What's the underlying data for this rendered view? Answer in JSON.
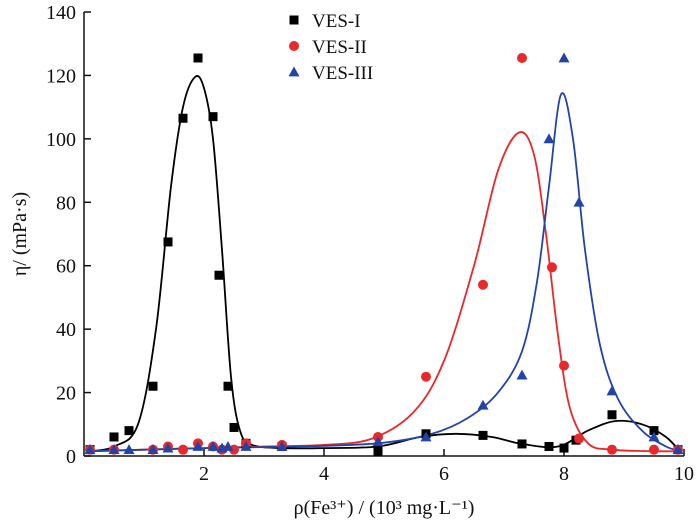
{
  "chart_data": {
    "type": "scatter",
    "title": "",
    "xlabel": "ρ(Fe³⁺) / (10³ mg·L⁻¹)",
    "ylabel": "η/ (mPa·s)",
    "xlim": [
      0,
      10
    ],
    "ylim": [
      0,
      140
    ],
    "x_ticks": [
      2,
      4,
      6,
      8,
      10
    ],
    "y_ticks": [
      0,
      20,
      40,
      60,
      80,
      100,
      120,
      140
    ],
    "legend_position": "top-center",
    "grid": false,
    "series": [
      {
        "name": "VES-I",
        "color": "#000000",
        "marker": "square",
        "points": [
          [
            0.1,
            2
          ],
          [
            0.5,
            6
          ],
          [
            0.75,
            8
          ],
          [
            1.15,
            22
          ],
          [
            1.4,
            67.5
          ],
          [
            1.65,
            106.5
          ],
          [
            1.9,
            125.5
          ],
          [
            2.15,
            107
          ],
          [
            2.25,
            57
          ],
          [
            2.4,
            22
          ],
          [
            2.5,
            9
          ],
          [
            2.7,
            4
          ],
          [
            3.3,
            3
          ],
          [
            4.9,
            1.5
          ],
          [
            5.7,
            7
          ],
          [
            6.65,
            6.5
          ],
          [
            7.3,
            3.8
          ],
          [
            7.75,
            3
          ],
          [
            8.0,
            2.5
          ],
          [
            8.2,
            5
          ],
          [
            8.8,
            13
          ],
          [
            9.5,
            8
          ],
          [
            9.9,
            2
          ]
        ],
        "curve": [
          [
            0.1,
            1.5
          ],
          [
            0.5,
            3
          ],
          [
            0.9,
            10
          ],
          [
            1.2,
            40
          ],
          [
            1.45,
            85
          ],
          [
            1.65,
            110
          ],
          [
            1.85,
            119.5
          ],
          [
            2.0,
            116
          ],
          [
            2.15,
            100
          ],
          [
            2.3,
            65
          ],
          [
            2.45,
            25
          ],
          [
            2.6,
            8
          ],
          [
            2.8,
            3.5
          ],
          [
            3.3,
            2.5
          ],
          [
            4.0,
            2.5
          ],
          [
            4.9,
            3
          ],
          [
            5.6,
            6
          ],
          [
            6.2,
            7
          ],
          [
            6.8,
            6
          ],
          [
            7.3,
            3.8
          ],
          [
            7.9,
            3
          ],
          [
            8.4,
            8
          ],
          [
            8.85,
            11
          ],
          [
            9.3,
            10
          ],
          [
            9.7,
            6
          ],
          [
            9.95,
            1
          ]
        ]
      },
      {
        "name": "VES-II",
        "color": "#e8282a",
        "marker": "circle",
        "points": [
          [
            0.1,
            2
          ],
          [
            0.5,
            2
          ],
          [
            1.15,
            2
          ],
          [
            1.4,
            3
          ],
          [
            1.65,
            2
          ],
          [
            1.9,
            4
          ],
          [
            2.15,
            3
          ],
          [
            2.3,
            2
          ],
          [
            2.5,
            2
          ],
          [
            2.7,
            4
          ],
          [
            3.3,
            3.5
          ],
          [
            4.9,
            6
          ],
          [
            5.7,
            25
          ],
          [
            6.65,
            54
          ],
          [
            7.3,
            125.5
          ],
          [
            7.8,
            59.5
          ],
          [
            8.0,
            28.5
          ],
          [
            8.25,
            5.5
          ],
          [
            8.8,
            2
          ],
          [
            9.5,
            2
          ],
          [
            9.9,
            2
          ]
        ],
        "curve": [
          [
            0.1,
            1.5
          ],
          [
            1.0,
            2
          ],
          [
            2.0,
            2.5
          ],
          [
            3.0,
            3
          ],
          [
            4.0,
            3.5
          ],
          [
            4.8,
            5.5
          ],
          [
            5.5,
            14
          ],
          [
            6.0,
            30
          ],
          [
            6.5,
            60
          ],
          [
            6.9,
            90
          ],
          [
            7.25,
            102
          ],
          [
            7.5,
            95
          ],
          [
            7.7,
            70
          ],
          [
            7.9,
            38
          ],
          [
            8.1,
            15
          ],
          [
            8.4,
            4
          ],
          [
            8.8,
            2
          ],
          [
            9.5,
            1.5
          ],
          [
            9.95,
            1.5
          ]
        ]
      },
      {
        "name": "VES-III",
        "color": "#2244aa",
        "marker": "triangle",
        "points": [
          [
            0.1,
            2
          ],
          [
            0.5,
            2
          ],
          [
            0.75,
            2
          ],
          [
            1.15,
            2
          ],
          [
            1.4,
            2.5
          ],
          [
            1.9,
            3
          ],
          [
            2.15,
            3
          ],
          [
            2.3,
            2.5
          ],
          [
            2.4,
            3
          ],
          [
            2.7,
            3
          ],
          [
            3.3,
            3
          ],
          [
            4.9,
            4.5
          ],
          [
            5.7,
            6
          ],
          [
            6.65,
            16
          ],
          [
            7.3,
            25.5
          ],
          [
            7.75,
            100
          ],
          [
            8.0,
            125.5
          ],
          [
            8.25,
            80
          ],
          [
            8.8,
            20.5
          ],
          [
            9.5,
            6
          ],
          [
            9.9,
            2
          ]
        ],
        "curve": [
          [
            0.1,
            1.5
          ],
          [
            1.0,
            2
          ],
          [
            2.0,
            2.5
          ],
          [
            3.0,
            2.8
          ],
          [
            4.0,
            3.2
          ],
          [
            5.0,
            4.2
          ],
          [
            5.8,
            7
          ],
          [
            6.4,
            12
          ],
          [
            6.9,
            20
          ],
          [
            7.3,
            33
          ],
          [
            7.55,
            55
          ],
          [
            7.75,
            85
          ],
          [
            7.95,
            114
          ],
          [
            8.15,
            100
          ],
          [
            8.35,
            65
          ],
          [
            8.6,
            35
          ],
          [
            8.9,
            18
          ],
          [
            9.3,
            8
          ],
          [
            9.7,
            3
          ],
          [
            9.95,
            1.5
          ]
        ]
      }
    ]
  }
}
